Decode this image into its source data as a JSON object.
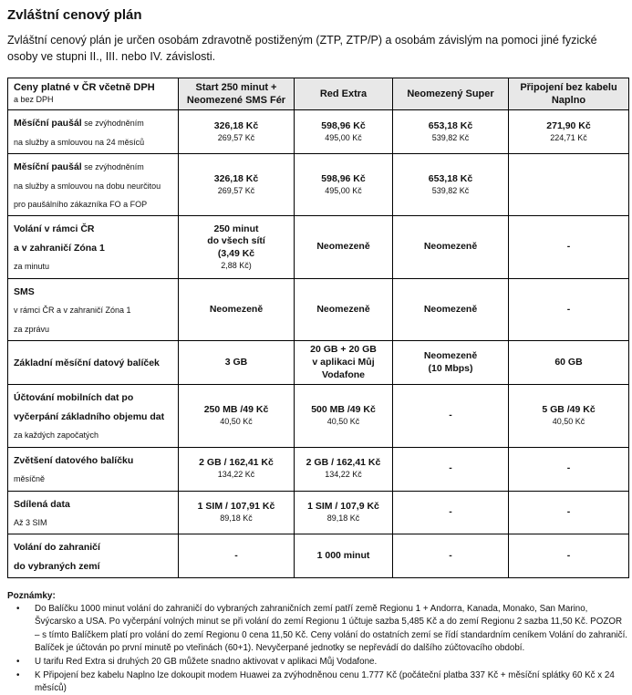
{
  "page": {
    "title": "Zvláštní cenový plán",
    "intro": "Zvláštní cenový plán je určen osobám zdravotně postiženým (ZTP, ZTP/P) a osobám závislým na pomoci jiné fyzické osoby ve stupni II., III. nebo IV. závislosti."
  },
  "colors": {
    "header_bg": "#e8e8e8",
    "border_color": "#000000",
    "text_color": "#111111"
  },
  "table": {
    "corner": {
      "title": "Ceny platné v ČR včetně DPH",
      "sub": "a bez DPH"
    },
    "plan_headers": [
      "Start 250 minut +\nNeomezené SMS Fér",
      "Red Extra",
      "Neomezený Super",
      "Připojení bez kabelu\nNaplno"
    ],
    "rows": [
      {
        "label": [
          [
            {
              "t": "Měsíční paušál",
              "b": true
            },
            {
              "t": " se zvýhodněním",
              "b": false
            }
          ],
          [
            {
              "t": "na služby a smlouvou na 24 měsíců",
              "b": false
            }
          ]
        ],
        "cells": [
          [
            {
              "t": "326,18 Kč",
              "b": true
            },
            {
              "t": "269,57 Kč",
              "b": false
            }
          ],
          [
            {
              "t": "598,96 Kč",
              "b": true
            },
            {
              "t": "495,00 Kč",
              "b": false
            }
          ],
          [
            {
              "t": "653,18 Kč",
              "b": true
            },
            {
              "t": "539,82 Kč",
              "b": false
            }
          ],
          [
            {
              "t": "271,90 Kč",
              "b": true
            },
            {
              "t": "224,71 Kč",
              "b": false
            }
          ]
        ]
      },
      {
        "label": [
          [
            {
              "t": "Měsíční paušál",
              "b": true
            },
            {
              "t": " se zvýhodněním",
              "b": false
            }
          ],
          [
            {
              "t": "na služby a smlouvou na dobu neurčitou",
              "b": false
            }
          ],
          [
            {
              "t": "pro paušálního zákazníka FO a FOP",
              "b": false
            }
          ]
        ],
        "cells": [
          [
            {
              "t": "326,18 Kč",
              "b": true
            },
            {
              "t": "269,57 Kč",
              "b": false
            }
          ],
          [
            {
              "t": "598,96 Kč",
              "b": true
            },
            {
              "t": "495,00 Kč",
              "b": false
            }
          ],
          [
            {
              "t": "653,18 Kč",
              "b": true
            },
            {
              "t": "539,82 Kč",
              "b": false
            }
          ],
          []
        ]
      },
      {
        "label": [
          [
            {
              "t": "Volání v rámci ČR",
              "b": true
            }
          ],
          [
            {
              "t": "a v zahraničí Zóna 1",
              "b": true
            }
          ],
          [
            {
              "t": "za minutu",
              "b": false
            }
          ]
        ],
        "cells": [
          [
            {
              "t": "250 minut",
              "b": true
            },
            {
              "t": "do všech sítí",
              "b": true
            },
            {
              "t": "(3,49 Kč",
              "b": true
            },
            {
              "t": "2,88 Kč)",
              "b": false
            }
          ],
          [
            {
              "t": "Neomezeně",
              "b": true
            }
          ],
          [
            {
              "t": "Neomezeně",
              "b": true
            }
          ],
          [
            {
              "t": "-",
              "b": true
            }
          ]
        ]
      },
      {
        "label": [
          [
            {
              "t": "SMS",
              "b": true
            }
          ],
          [
            {
              "t": "v rámci ČR a v zahraničí Zóna 1",
              "b": false
            }
          ],
          [
            {
              "t": "za zprávu",
              "b": false
            }
          ]
        ],
        "cells": [
          [
            {
              "t": "Neomezeně",
              "b": true
            }
          ],
          [
            {
              "t": "Neomezeně",
              "b": true
            }
          ],
          [
            {
              "t": "Neomezeně",
              "b": true
            }
          ],
          [
            {
              "t": "-",
              "b": true
            }
          ]
        ]
      },
      {
        "label": [
          [
            {
              "t": "Základní měsíční datový balíček",
              "b": true
            }
          ]
        ],
        "cells": [
          [
            {
              "t": "3 GB",
              "b": true
            }
          ],
          [
            {
              "t": "20 GB + 20 GB",
              "b": true
            },
            {
              "t": "v aplikaci Můj",
              "b": true
            },
            {
              "t": "Vodafone",
              "b": true
            }
          ],
          [
            {
              "t": "Neomezeně",
              "b": true
            },
            {
              "t": "(10 Mbps)",
              "b": true
            }
          ],
          [
            {
              "t": "60 GB",
              "b": true
            }
          ]
        ]
      },
      {
        "label": [
          [
            {
              "t": "Účtování mobilních dat po",
              "b": true
            }
          ],
          [
            {
              "t": "vyčerpání základního objemu dat",
              "b": true
            }
          ],
          [
            {
              "t": "za každých započatých",
              "b": false
            }
          ]
        ],
        "cells": [
          [
            {
              "t": "250 MB /49 Kč",
              "b": true
            },
            {
              "t": "40,50 Kč",
              "b": false
            }
          ],
          [
            {
              "t": "500 MB /49 Kč",
              "b": true
            },
            {
              "t": "40,50 Kč",
              "b": false
            }
          ],
          [
            {
              "t": "-",
              "b": true
            }
          ],
          [
            {
              "t": "5 GB /49 Kč",
              "b": true
            },
            {
              "t": "40,50 Kč",
              "b": false
            }
          ]
        ]
      },
      {
        "label": [
          [
            {
              "t": "Zvětšení datového balíčku",
              "b": true
            }
          ],
          [
            {
              "t": "měsíčně",
              "b": false
            }
          ]
        ],
        "cells": [
          [
            {
              "t": "2 GB / 162,41 Kč",
              "b": true
            },
            {
              "t": "134,22 Kč",
              "b": false
            }
          ],
          [
            {
              "t": "2 GB / 162,41 Kč",
              "b": true
            },
            {
              "t": "134,22 Kč",
              "b": false
            }
          ],
          [
            {
              "t": "-",
              "b": true
            }
          ],
          [
            {
              "t": "-",
              "b": true
            }
          ]
        ]
      },
      {
        "label": [
          [
            {
              "t": "Sdílená data",
              "b": true
            }
          ],
          [
            {
              "t": "Až 3 SIM",
              "b": false
            }
          ]
        ],
        "cells": [
          [
            {
              "t": "1 SIM / 107,91 Kč",
              "b": true
            },
            {
              "t": "89,18 Kč",
              "b": false
            }
          ],
          [
            {
              "t": "1 SIM / 107,9 Kč",
              "b": true
            },
            {
              "t": "89,18 Kč",
              "b": false
            }
          ],
          [
            {
              "t": "-",
              "b": true
            }
          ],
          [
            {
              "t": "-",
              "b": true
            }
          ]
        ]
      },
      {
        "label": [
          [
            {
              "t": "Volání do zahraničí",
              "b": true
            }
          ],
          [
            {
              "t": "do vybraných zemí",
              "b": true
            }
          ]
        ],
        "cells": [
          [
            {
              "t": "-",
              "b": true
            }
          ],
          [
            {
              "t": "1 000 minut",
              "b": true
            }
          ],
          [
            {
              "t": "-",
              "b": true
            }
          ],
          [
            {
              "t": "-",
              "b": true
            }
          ]
        ]
      }
    ]
  },
  "notes": {
    "heading": "Poznámky:",
    "items": [
      "Do Balíčku 1000 minut volání do zahraničí do vybraných zahraničních zemí patří země Regionu 1 + Andorra, Kanada, Monako, San Marino, Švýcarsko a USA. Po vyčerpání volných minut se při volání do zemí Regionu 1 účtuje sazba 5,485 Kč a do zemí Regionu 2 sazba 11,50 Kč. POZOR – s tímto Balíčkem platí pro volání do zemí Regionu 0 cena 11,50 Kč. Ceny volání do ostatních zemí se řídí standardním ceníkem Volání do zahraničí. Balíček je účtován po první minutě po vteřinách (60+1). Nevyčerpané jednotky se nepřevádí do dalšího zúčtovacího období.",
      "U tarifu Red Extra si druhých 20 GB můžete snadno aktivovat v aplikaci Můj Vodafone.",
      "K Připojení bez kabelu Naplno lze dokoupit modem Huawei za zvýhodněnou cenu 1.777 Kč (počáteční platba 337 Kč + měsíční splátky 60 Kč x 24 měsíců)"
    ]
  }
}
